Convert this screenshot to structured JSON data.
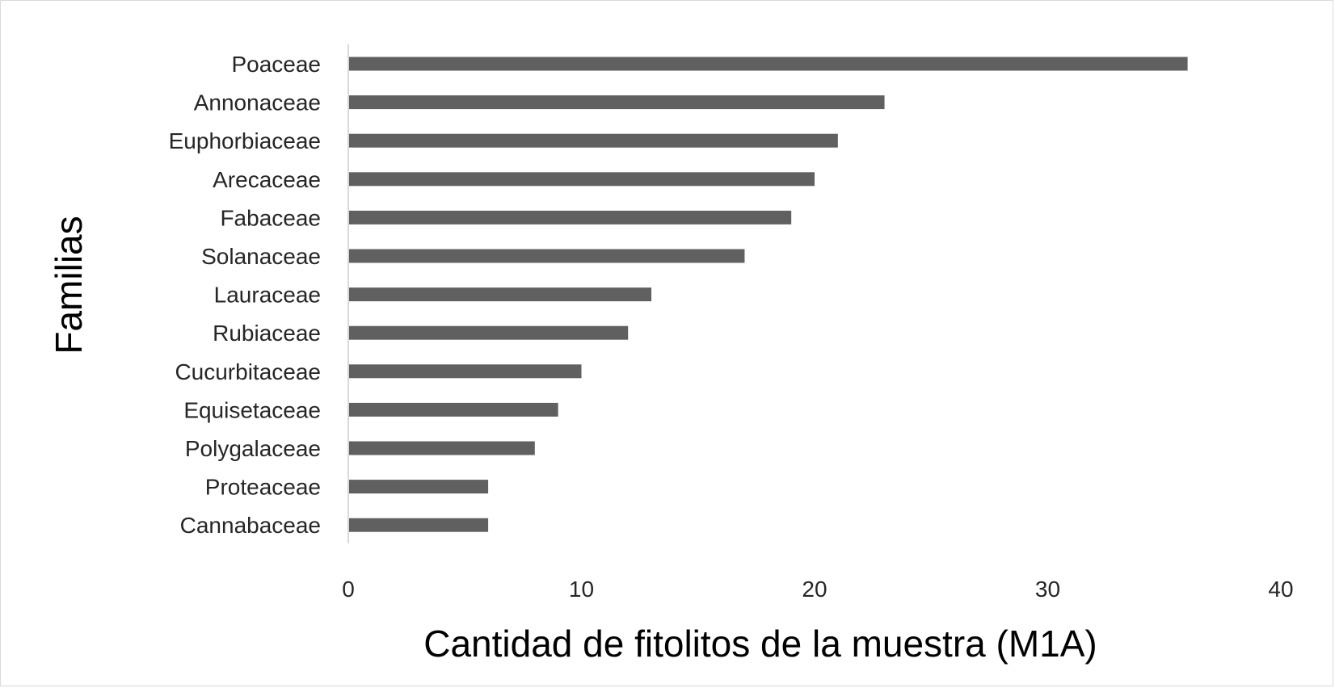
{
  "chart_data": {
    "type": "bar",
    "orientation": "horizontal",
    "title": "",
    "xlabel": "Cantidad de fitolitos de la muestra (M1A)",
    "ylabel": "Familias",
    "categories": [
      "Poaceae",
      "Annonaceae",
      "Euphorbiaceae",
      "Arecaceae",
      "Fabaceae",
      "Solanaceae",
      "Lauraceae ",
      "Rubiaceae",
      "Cucurbitaceae",
      "Equisetaceae",
      "Polygalaceae",
      "Proteaceae",
      "Cannabaceae"
    ],
    "values": [
      36,
      23,
      21,
      20,
      19,
      17,
      13,
      12,
      10,
      9,
      8,
      6,
      6
    ],
    "xlim": [
      0,
      40
    ],
    "xticks": [
      0,
      10,
      20,
      30,
      40
    ],
    "grid": false,
    "legend": "none",
    "bar_color": "#606060",
    "axis_color": "#d9d9d9"
  }
}
